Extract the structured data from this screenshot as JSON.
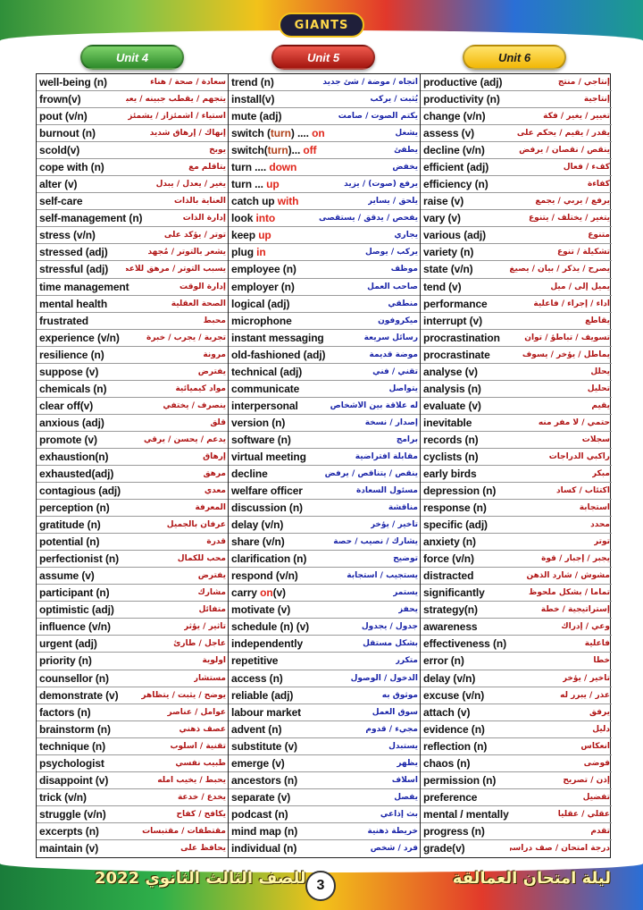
{
  "header": {
    "logo_text": "GIANTS"
  },
  "units": [
    {
      "label": "Unit 4",
      "color": "#3a9a30"
    },
    {
      "label": "Unit 5",
      "color": "#c4261d"
    },
    {
      "label": "Unit 6",
      "color": "#f2c21a"
    }
  ],
  "columns": [
    [
      {
        "en": "well-being (n)",
        "ar": "سعادة / صحة / هناء"
      },
      {
        "en": "frown(v)",
        "ar": "يتجهم / يقطب جبينه / يعبس"
      },
      {
        "en": "pout (v/n)",
        "ar": "استياء / اشمئزاز / يشمئز"
      },
      {
        "en": "burnout (n)",
        "ar": "إنهاك / إرهاق شديد"
      },
      {
        "en": "scold(v)",
        "ar": "يوبخ"
      },
      {
        "en": "cope with (n)",
        "ar": "يتأقلم مع"
      },
      {
        "en": "alter (v)",
        "ar": "يغير / يعدل / يبدل"
      },
      {
        "en": "self-care",
        "ar": "العناية بالذات"
      },
      {
        "en": "self-management (n)",
        "ar": "إدارة الذات"
      },
      {
        "en": "stress (v/n)",
        "ar": "توتر / يؤكد على"
      },
      {
        "en": "stressed (adj)",
        "ar": "يشعر بالتوتر / مُجهد"
      },
      {
        "en": "stressful (adj)",
        "ar": "يسبب التوتر / مرهق للأعصاب"
      },
      {
        "en": "time management",
        "ar": "إدارة الوقت"
      },
      {
        "en": "mental health",
        "ar": "الصحة العقلية"
      },
      {
        "en": "frustrated",
        "ar": "محبط"
      },
      {
        "en": "experience (v/n)",
        "ar": "تجربة / يجرب / خبرة"
      },
      {
        "en": "resilience (n)",
        "ar": "مرونة"
      },
      {
        "en": "suppose (v)",
        "ar": "يفترض"
      },
      {
        "en": "chemicals (n)",
        "ar": "مواد كيميائية"
      },
      {
        "en": "clear off(v)",
        "ar": "ينصرف / يختفي"
      },
      {
        "en": "anxious (adj)",
        "ar": "قلق"
      },
      {
        "en": "promote (v)",
        "ar": "يدعم / يحسن / يرقي"
      },
      {
        "en": "exhaustion(n)",
        "ar": "إرهاق"
      },
      {
        "en": "exhausted(adj)",
        "ar": "مرهق"
      },
      {
        "en": "contagious (adj)",
        "ar": "معدي"
      },
      {
        "en": "perception (n)",
        "ar": "المعرفة"
      },
      {
        "en": "gratitude (n)",
        "ar": "عرفان بالجميل"
      },
      {
        "en": "potential (n)",
        "ar": "قدرة"
      },
      {
        "en": "perfectionist (n)",
        "ar": "محب للكمال"
      },
      {
        "en": "assume (v)",
        "ar": "يفترض"
      },
      {
        "en": "participant (n)",
        "ar": "مشارك"
      },
      {
        "en": "optimistic (adj)",
        "ar": "متفائل"
      },
      {
        "en": "influence (v/n)",
        "ar": "تأثير / يؤثر"
      },
      {
        "en": "urgent (adj)",
        "ar": "عاجل / طارئ"
      },
      {
        "en": "priority (n)",
        "ar": "أولوية"
      },
      {
        "en": "counsellor (n)",
        "ar": "مستشار"
      },
      {
        "en": "demonstrate (v)",
        "ar": "يوضح / يثبت / يتظاهر"
      },
      {
        "en": "factors (n)",
        "ar": "عوامل / عناصر"
      },
      {
        "en": "brainstorm (n)",
        "ar": "عصف ذهني"
      },
      {
        "en": "technique (n)",
        "ar": "تقنية / أسلوب"
      },
      {
        "en": "psychologist",
        "ar": "طبيب نفسي"
      },
      {
        "en": "disappoint (v)",
        "ar": "يحبط / يخيب أمله"
      },
      {
        "en": "trick (v/n)",
        "ar": "يخدع / خدعة"
      },
      {
        "en": "struggle (v/n)",
        "ar": "يكافح / كفاح"
      },
      {
        "en": "excerpts (n)",
        "ar": "مقتطفات / مقتبسات"
      },
      {
        "en": "maintain (v)",
        "ar": "يحافظ على"
      }
    ],
    [
      {
        "en": "trend (n)",
        "ar": "اتجاه / موضة / شئ جديد"
      },
      {
        "en": "install(v)",
        "ar": "يُثبت / يركب"
      },
      {
        "en": "mute (adj)",
        "ar": "يكتم الصوت / صامت"
      },
      {
        "en": "switch (turn) .... on",
        "ar": "يشغل",
        "hl": "turn_on"
      },
      {
        "en": "switch(turn)... off",
        "ar": "يطفئ",
        "hl": "turn_off"
      },
      {
        "en": "turn .... down",
        "ar": "يخفض",
        "hl": "down"
      },
      {
        "en": "turn ... up",
        "ar": "يرفع (صوت) / يزيد",
        "hl": "up"
      },
      {
        "en": "catch up with",
        "ar": "يلحق / يساير",
        "hl": "with"
      },
      {
        "en": "look into",
        "ar": "يفحص / يدقق / يستقصى",
        "hl": "into"
      },
      {
        "en": "keep up",
        "ar": "يجاري",
        "hl": "up"
      },
      {
        "en": "plug in",
        "ar": "يركب / يوصل",
        "hl": "in"
      },
      {
        "en": "employee (n)",
        "ar": "موظف"
      },
      {
        "en": "employer (n)",
        "ar": "صاحب العمل"
      },
      {
        "en": "logical (adj)",
        "ar": "منطقي"
      },
      {
        "en": "microphone",
        "ar": "ميكروفون"
      },
      {
        "en": "instant messaging",
        "ar": "رسائل سريعة"
      },
      {
        "en": "old-fashioned (adj)",
        "ar": "موضة قديمة"
      },
      {
        "en": "technical (adj)",
        "ar": "تقني / فني"
      },
      {
        "en": "communicate",
        "ar": "يتواصل"
      },
      {
        "en": "interpersonal",
        "ar": "له علاقة بين الأشخاص"
      },
      {
        "en": "version (n)",
        "ar": "إصدار / نسخة"
      },
      {
        "en": "software (n)",
        "ar": "برامج"
      },
      {
        "en": "virtual meeting",
        "ar": "مقابلة افتراضية"
      },
      {
        "en": "decline",
        "ar": "ينقص / يتناقص / يرفض"
      },
      {
        "en": "welfare officer",
        "ar": "مسئول السعادة"
      },
      {
        "en": "discussion (n)",
        "ar": "مناقشة"
      },
      {
        "en": "delay (v/n)",
        "ar": "تأخير / يؤخر"
      },
      {
        "en": "share (v/n)",
        "ar": "يشارك / نصيب / حصة"
      },
      {
        "en": "clarification (n)",
        "ar": "توضيح"
      },
      {
        "en": "respond (v/n)",
        "ar": "يستجيب / استجابة"
      },
      {
        "en": "carry on(v)",
        "ar": "يستمر",
        "hl": "on"
      },
      {
        "en": "motivate (v)",
        "ar": "يحفز"
      },
      {
        "en": "schedule (n) (v)",
        "ar": "جدول / يجدول"
      },
      {
        "en": "independently",
        "ar": "بشكل مستقل"
      },
      {
        "en": "repetitive",
        "ar": "متكرر"
      },
      {
        "en": "access (n)",
        "ar": "الدخول / الوصول"
      },
      {
        "en": "reliable (adj)",
        "ar": "موثوق به"
      },
      {
        "en": "labour market",
        "ar": "سوق العمل"
      },
      {
        "en": "advent (n)",
        "ar": "مجيء / قدوم"
      },
      {
        "en": "substitute (v)",
        "ar": "يستبدل"
      },
      {
        "en": "emerge (v)",
        "ar": "يظهر"
      },
      {
        "en": "ancestors (n)",
        "ar": "أسلاف"
      },
      {
        "en": "separate (v)",
        "ar": "يفصل"
      },
      {
        "en": "podcast (n)",
        "ar": "بث إذاعي"
      },
      {
        "en": "mind map (n)",
        "ar": "خريطة ذهنية"
      },
      {
        "en": "individual (n)",
        "ar": "فرد / شخص"
      }
    ],
    [
      {
        "en": "productive (adj)",
        "ar": "إنتاجي / منتج"
      },
      {
        "en": "productivity (n)",
        "ar": "إنتاجية"
      },
      {
        "en": "change (v/n)",
        "ar": "تغيير / يغير / فكة"
      },
      {
        "en": "assess (v)",
        "ar": "يقدر / يقيم / يحكم على"
      },
      {
        "en": "decline (v/n)",
        "ar": "ينقص / نقصان / يرفض"
      },
      {
        "en": "efficient (adj)",
        "ar": "كفء / فعال"
      },
      {
        "en": "efficiency (n)",
        "ar": "كفاءة"
      },
      {
        "en": "raise (v)",
        "ar": "يرفع / يربي / يجمع"
      },
      {
        "en": "vary (v)",
        "ar": "يتغير / يختلف / يتنوع"
      },
      {
        "en": "various (adj)",
        "ar": "متنوع"
      },
      {
        "en": "variety (n)",
        "ar": "تشكيلة / تنوع"
      },
      {
        "en": "state (v/n)",
        "ar": "يصرح / يذكر / بيان / يصيغ"
      },
      {
        "en": "tend (v)",
        "ar": "يميل إلى / ميل"
      },
      {
        "en": "performance",
        "ar": "أداء / إجراء / فاعلية"
      },
      {
        "en": "interrupt (v)",
        "ar": "يقاطع"
      },
      {
        "en": "procrastination",
        "ar": "تسويف / تباطؤ / توان"
      },
      {
        "en": "procrastinate",
        "ar": "يماطل / يؤخر / يسوف"
      },
      {
        "en": "analyse (v)",
        "ar": "يحلل"
      },
      {
        "en": "analysis (n)",
        "ar": "تحليل"
      },
      {
        "en": "evaluate (v)",
        "ar": "يقيم"
      },
      {
        "en": "inevitable",
        "ar": "حتمي / لا مفر منه"
      },
      {
        "en": "records (n)",
        "ar": "سجلات"
      },
      {
        "en": "cyclists (n)",
        "ar": "راكبي الدراجات"
      },
      {
        "en": "early birds",
        "ar": "مبكر"
      },
      {
        "en": "depression (n)",
        "ar": "اكتئاب / كساد"
      },
      {
        "en": "response (n)",
        "ar": "استجابة"
      },
      {
        "en": "specific (adj)",
        "ar": "محدد"
      },
      {
        "en": "anxiety (n)",
        "ar": "توتر"
      },
      {
        "en": "force (v/n)",
        "ar": "يجبر / إجبار / قوة"
      },
      {
        "en": "distracted",
        "ar": "مشوش / شارد الذهن"
      },
      {
        "en": "significantly",
        "ar": "تماما / بشكل ملحوظ"
      },
      {
        "en": "strategy(n)",
        "ar": "إستراتيجية / خطة"
      },
      {
        "en": "awareness",
        "ar": "وعي / إدراك"
      },
      {
        "en": "effectiveness (n)",
        "ar": "فاعلية"
      },
      {
        "en": "error (n)",
        "ar": "خطأ"
      },
      {
        "en": "delay (v/n)",
        "ar": "تأخير / يؤخر"
      },
      {
        "en": "excuse (v/n)",
        "ar": "عذر / يبرر له"
      },
      {
        "en": "attach (v)",
        "ar": "يرفق"
      },
      {
        "en": "evidence (n)",
        "ar": "دليل"
      },
      {
        "en": "reflection (n)",
        "ar": "انعكاس"
      },
      {
        "en": "chaos (n)",
        "ar": "فوضى"
      },
      {
        "en": "permission (n)",
        "ar": "إذن / تصريح"
      },
      {
        "en": "preference",
        "ar": "تفضيل"
      },
      {
        "en": "mental / mentally",
        "ar": "عقلي / عقليا"
      },
      {
        "en": "progress (n)",
        "ar": "تقدم"
      },
      {
        "en": "grade(v)",
        "ar": "درجة امتحان / صف دراسي / متدرج"
      }
    ]
  ],
  "footer": {
    "left_text": "للصف الثالث الثانوي 2022",
    "page_number": "3",
    "right_text": "ليلة امتحان العمالقة"
  }
}
